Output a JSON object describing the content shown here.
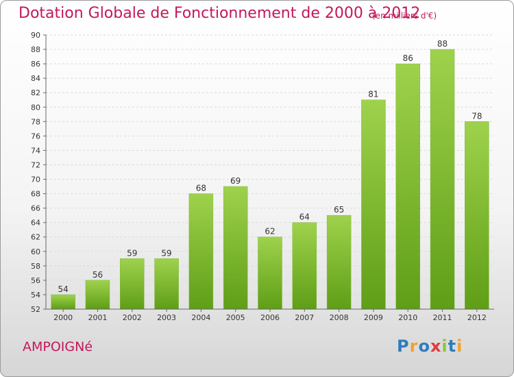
{
  "title": "Dotation Globale de Fonctionnement de 2000 à 2012",
  "subtitle": "(en milliers d'€)",
  "commune": "AMPOIGNé",
  "logo": "Proxiti",
  "colors": {
    "bar_top": "#9fd24c",
    "bar_bottom": "#5f9e17",
    "title": "#c2185b"
  },
  "chart_data": {
    "type": "bar",
    "categories": [
      "2000",
      "2001",
      "2002",
      "2003",
      "2004",
      "2005",
      "2006",
      "2007",
      "2008",
      "2009",
      "2010",
      "2011",
      "2012"
    ],
    "values": [
      54,
      56,
      59,
      59,
      68,
      69,
      62,
      64,
      65,
      81,
      86,
      88,
      78
    ],
    "ylim": [
      52,
      90
    ],
    "yticks": [
      52,
      54,
      56,
      58,
      60,
      62,
      64,
      66,
      68,
      70,
      72,
      74,
      76,
      78,
      80,
      82,
      84,
      86,
      88,
      90
    ],
    "grid": true,
    "data_labels": true
  }
}
